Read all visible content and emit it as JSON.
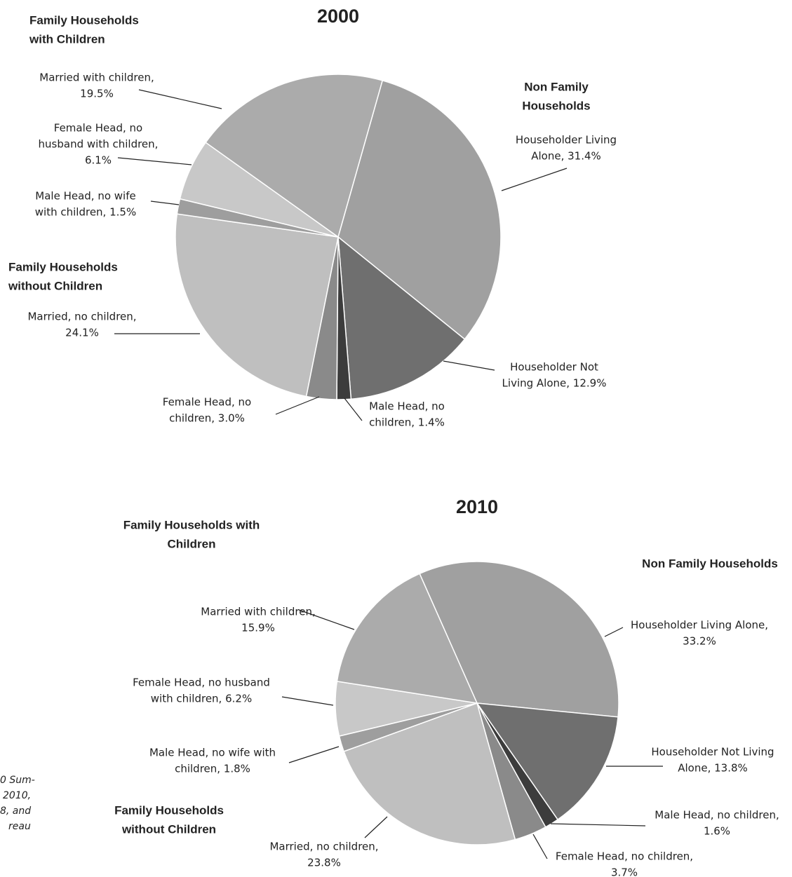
{
  "chart_data": [
    {
      "type": "pie",
      "title": "2000",
      "groups": [
        [
          "Family Households",
          "with Children"
        ],
        [
          "Non Family",
          "Households"
        ],
        [
          "Family Households",
          "without Children"
        ]
      ],
      "labels": [
        [
          "Householder Living",
          "Alone, 31.4%"
        ],
        [
          "Householder Not",
          "Living Alone, 12.9%"
        ],
        [
          "Male Head, no",
          "children, 1.4%"
        ],
        [
          "Female Head, no",
          "children, 3.0%"
        ],
        [
          "Married, no children,",
          "24.1%"
        ],
        [
          "Male Head, no wife",
          "with children, 1.5%"
        ],
        [
          "Female Head, no",
          "husband with children,",
          "6.1%"
        ],
        [
          "Married with children,",
          "19.5%"
        ]
      ],
      "values": [
        31.4,
        12.9,
        1.4,
        3.0,
        24.1,
        1.5,
        6.1,
        19.5
      ],
      "colors": [
        "#a0a0a0",
        "#6f6f6f",
        "#3c3c3c",
        "#8a8a8a",
        "#bfbfbf",
        "#9e9e9e",
        "#c8c8c8",
        "#ababab"
      ]
    },
    {
      "type": "pie",
      "title": "2010",
      "groups": [
        [
          "Family Households with",
          "Children"
        ],
        [
          "Non Family Households"
        ],
        [
          "Family Households",
          "without Children"
        ]
      ],
      "labels": [
        [
          "Householder Living Alone,",
          "33.2%"
        ],
        [
          "Householder Not Living",
          "Alone, 13.8%"
        ],
        [
          "Male Head, no children,",
          "1.6%"
        ],
        [
          "Female Head, no children,",
          "3.7%"
        ],
        [
          "Married, no children,",
          "23.8%"
        ],
        [
          "Male Head, no wife with",
          "children, 1.8%"
        ],
        [
          "Female Head, no husband",
          "with children, 6.2%"
        ],
        [
          "Married with children,",
          "15.9%"
        ]
      ],
      "values": [
        33.2,
        13.8,
        1.6,
        3.7,
        23.8,
        1.8,
        6.2,
        15.9
      ],
      "colors": [
        "#a0a0a0",
        "#6f6f6f",
        "#3c3c3c",
        "#8a8a8a",
        "#bfbfbf",
        "#9e9e9e",
        "#c8c8c8",
        "#ababab"
      ]
    }
  ],
  "source_fragments": [
    "0 Sum-",
    "2010,",
    "8, and",
    "reau"
  ]
}
